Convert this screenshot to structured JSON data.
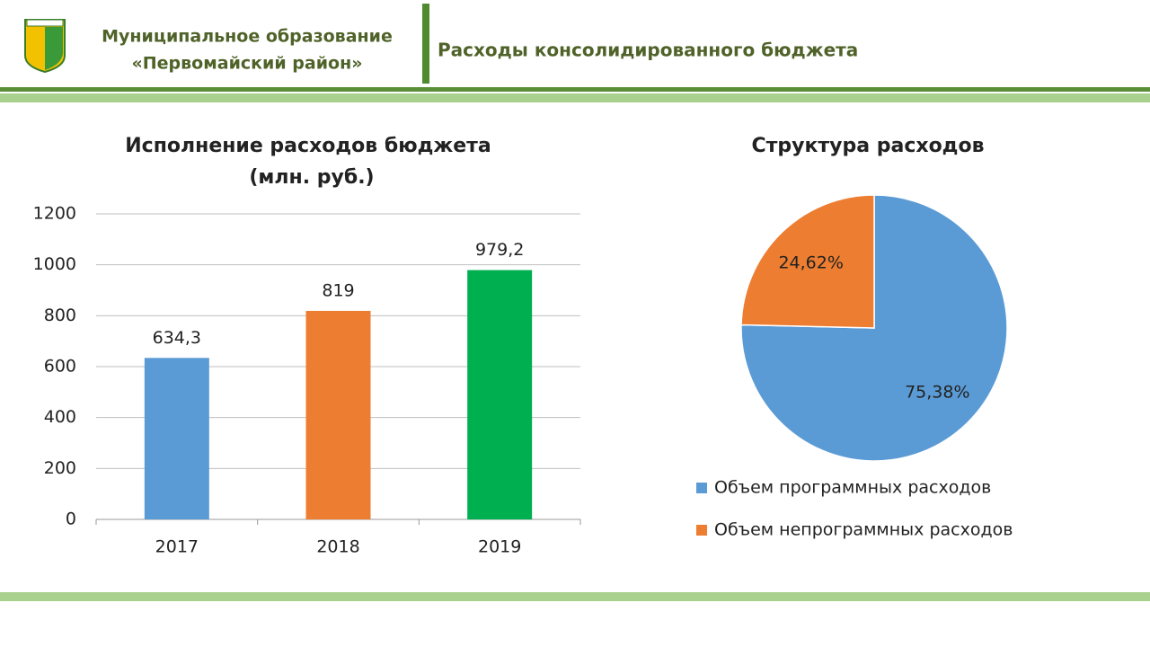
{
  "header": {
    "org_line1": "Муниципальное образование",
    "org_line2": "«Первомайский район»",
    "title": "Расходы консолидированного бюджета"
  },
  "chart_data": [
    {
      "type": "bar",
      "title": "Исполнение расходов бюджета",
      "subtitle": "(млн. руб.)",
      "categories": [
        "2017",
        "2018",
        "2019"
      ],
      "values": [
        634.3,
        819,
        979.2
      ],
      "value_labels": [
        "634,3",
        "819",
        "979,2"
      ],
      "colors": [
        "#5b9bd5",
        "#ed7d31",
        "#00b050"
      ],
      "ylim": [
        0,
        1200
      ],
      "yticks": [
        0,
        200,
        400,
        600,
        800,
        1000,
        1200
      ],
      "grid": true
    },
    {
      "type": "pie",
      "title": "Структура расходов",
      "categories": [
        "Объем программных расходов",
        "Объем непрограммных расходов"
      ],
      "values": [
        75.38,
        24.62
      ],
      "value_labels": [
        "75,38%",
        "24,62%"
      ],
      "colors": [
        "#5b9bd5",
        "#ed7d31"
      ],
      "legend": "bottom"
    }
  ]
}
